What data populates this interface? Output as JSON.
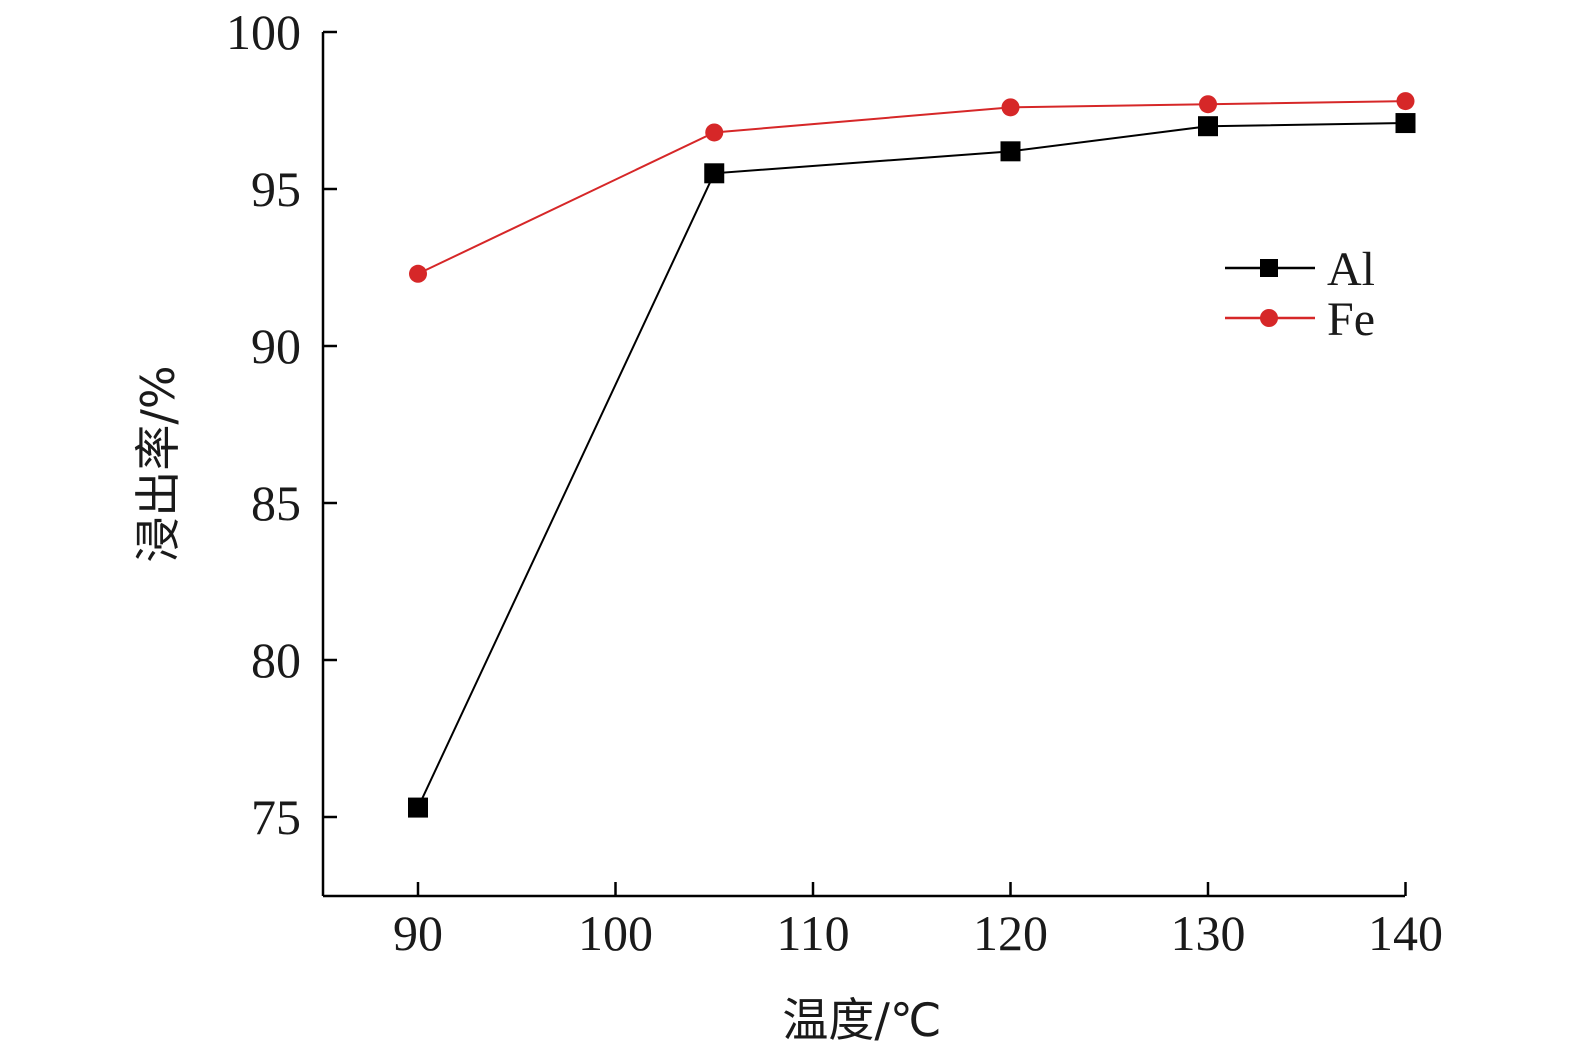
{
  "chart_data": {
    "type": "line",
    "title": "",
    "xlabel": "温度/℃",
    "ylabel": "浸出率/%",
    "xlim": [
      85,
      140
    ],
    "ylim": [
      72.5,
      100
    ],
    "xticks": [
      90,
      100,
      110,
      120,
      130,
      140
    ],
    "yticks": [
      75,
      80,
      85,
      90,
      95,
      100
    ],
    "grid": false,
    "legend_position": "right",
    "series": [
      {
        "name": "Al",
        "color": "#000000",
        "marker": "square",
        "x": [
          90,
          105,
          120,
          130,
          140
        ],
        "y": [
          75.3,
          95.5,
          96.2,
          97.0,
          97.1
        ]
      },
      {
        "name": "Fe",
        "color": "#d62728",
        "marker": "circle",
        "x": [
          90,
          105,
          120,
          130,
          140
        ],
        "y": [
          92.3,
          96.8,
          97.6,
          97.7,
          97.8
        ]
      }
    ]
  }
}
